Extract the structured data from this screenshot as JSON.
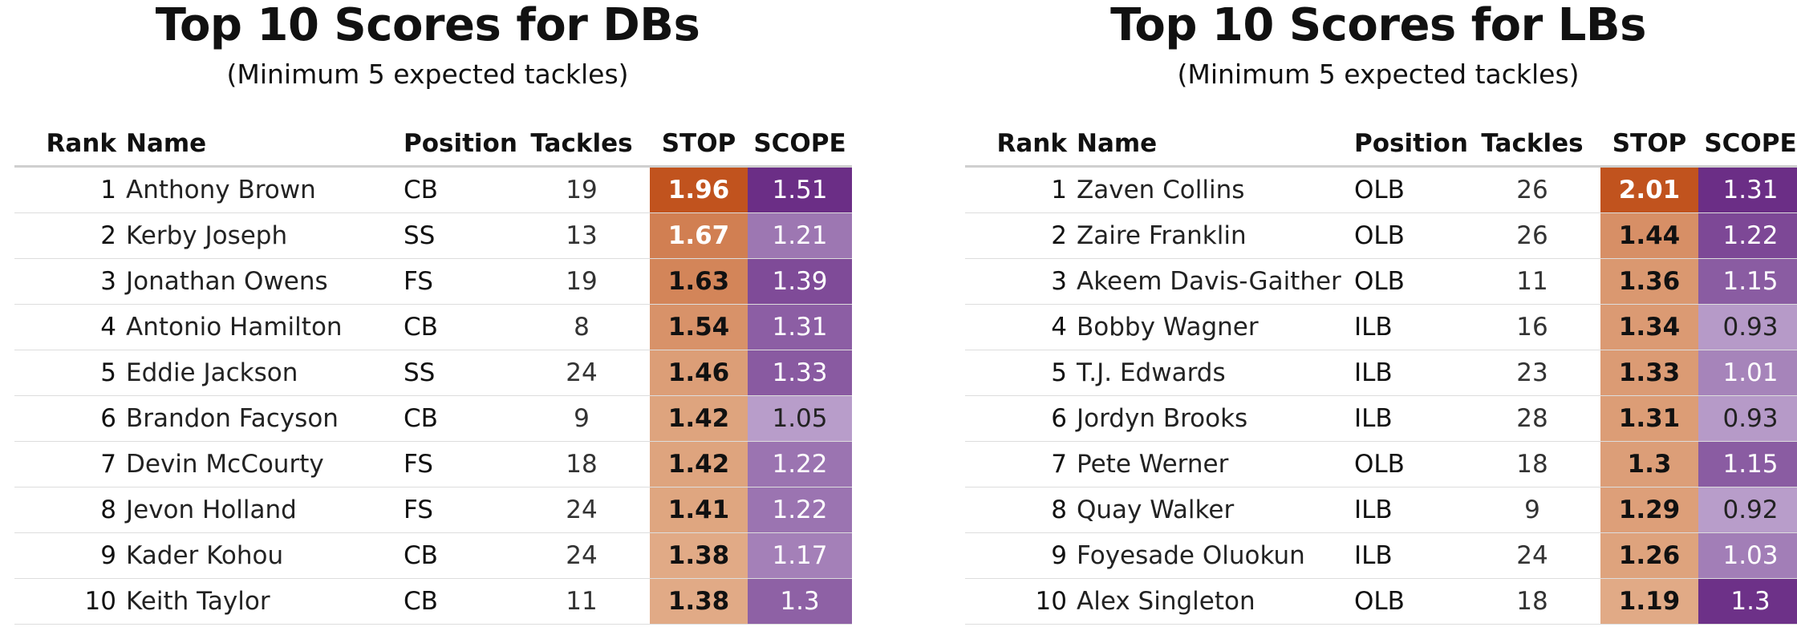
{
  "colors": {
    "stop_low": "#ebc7a8",
    "stop_high": "#c1531e",
    "scope_low": "#c5b1d6",
    "scope_high": "#6b2e86"
  },
  "chart_data": [
    {
      "type": "table",
      "title": "Top 10 Scores for DBs",
      "subtitle": "(Minimum 5 expected tackles)",
      "columns": [
        "Rank",
        "Name",
        "Position",
        "Tackles",
        "STOP",
        "SCOPE"
      ],
      "rows": [
        {
          "rank": "1",
          "name": "Anthony Brown",
          "position": "CB",
          "tackles": "19",
          "stop": "1.96",
          "scope": "1.51"
        },
        {
          "rank": "2",
          "name": "Kerby Joseph",
          "position": "SS",
          "tackles": "13",
          "stop": "1.67",
          "scope": "1.21"
        },
        {
          "rank": "3",
          "name": "Jonathan Owens",
          "position": "FS",
          "tackles": "19",
          "stop": "1.63",
          "scope": "1.39"
        },
        {
          "rank": "4",
          "name": "Antonio Hamilton",
          "position": "CB",
          "tackles": "8",
          "stop": "1.54",
          "scope": "1.31"
        },
        {
          "rank": "5",
          "name": "Eddie Jackson",
          "position": "SS",
          "tackles": "24",
          "stop": "1.46",
          "scope": "1.33"
        },
        {
          "rank": "6",
          "name": "Brandon Facyson",
          "position": "CB",
          "tackles": "9",
          "stop": "1.42",
          "scope": "1.05"
        },
        {
          "rank": "7",
          "name": "Devin McCourty",
          "position": "FS",
          "tackles": "18",
          "stop": "1.42",
          "scope": "1.22"
        },
        {
          "rank": "8",
          "name": "Jevon Holland",
          "position": "FS",
          "tackles": "24",
          "stop": "1.41",
          "scope": "1.22"
        },
        {
          "rank": "9",
          "name": "Kader Kohou",
          "position": "CB",
          "tackles": "24",
          "stop": "1.38",
          "scope": "1.17"
        },
        {
          "rank": "10",
          "name": "Keith Taylor",
          "position": "CB",
          "tackles": "11",
          "stop": "1.38",
          "scope": "1.3"
        }
      ]
    },
    {
      "type": "table",
      "title": "Top 10 Scores for LBs",
      "subtitle": "(Minimum 5 expected tackles)",
      "columns": [
        "Rank",
        "Name",
        "Position",
        "Tackles",
        "STOP",
        "SCOPE"
      ],
      "rows": [
        {
          "rank": "1",
          "name": "Zaven Collins",
          "position": "OLB",
          "tackles": "26",
          "stop": "2.01",
          "scope": "1.31"
        },
        {
          "rank": "2",
          "name": "Zaire Franklin",
          "position": "OLB",
          "tackles": "26",
          "stop": "1.44",
          "scope": "1.22"
        },
        {
          "rank": "3",
          "name": "Akeem Davis-Gaither",
          "position": "OLB",
          "tackles": "11",
          "stop": "1.36",
          "scope": "1.15"
        },
        {
          "rank": "4",
          "name": "Bobby Wagner",
          "position": "ILB",
          "tackles": "16",
          "stop": "1.34",
          "scope": "0.93"
        },
        {
          "rank": "5",
          "name": "T.J. Edwards",
          "position": "ILB",
          "tackles": "23",
          "stop": "1.33",
          "scope": "1.01"
        },
        {
          "rank": "6",
          "name": "Jordyn Brooks",
          "position": "ILB",
          "tackles": "28",
          "stop": "1.31",
          "scope": "0.93"
        },
        {
          "rank": "7",
          "name": "Pete Werner",
          "position": "OLB",
          "tackles": "18",
          "stop": "1.3",
          "scope": "1.15"
        },
        {
          "rank": "8",
          "name": "Quay Walker",
          "position": "ILB",
          "tackles": "9",
          "stop": "1.29",
          "scope": "0.92"
        },
        {
          "rank": "9",
          "name": "Foyesade Oluokun",
          "position": "ILB",
          "tackles": "24",
          "stop": "1.26",
          "scope": "1.03"
        },
        {
          "rank": "10",
          "name": "Alex Singleton",
          "position": "OLB",
          "tackles": "18",
          "stop": "1.19",
          "scope": "1.3"
        }
      ]
    }
  ]
}
